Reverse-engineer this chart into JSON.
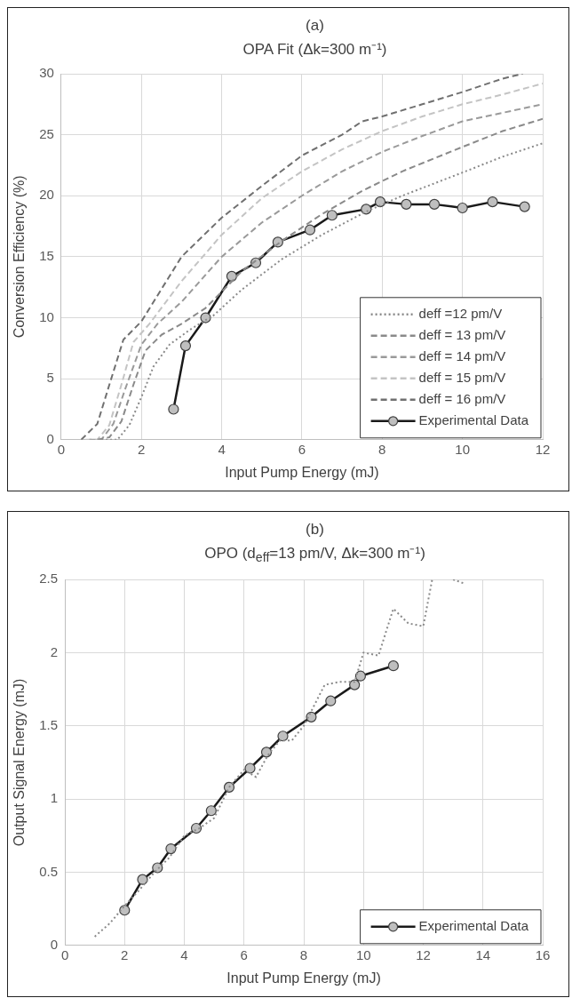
{
  "chart_data": [
    {
      "type": "line",
      "title": "(a)",
      "subtitle": "OPA Fit (Δk=300 m⁻¹)",
      "xlabel": "Input Pump Energy (mJ)",
      "ylabel": "Conversion Efficiency (%)",
      "xlim": [
        0,
        12
      ],
      "xticks": [
        0,
        2,
        4,
        6,
        8,
        10,
        12
      ],
      "ylim": [
        0,
        30
      ],
      "yticks": [
        0,
        5,
        10,
        15,
        20,
        25,
        30
      ],
      "grid": true,
      "legend": "bottom right",
      "series": [
        {
          "name": "deff =12 pm/V",
          "color": "#8a8a8a",
          "line_style": "dotted",
          "marker": "none",
          "x": [
            1.0,
            1.4,
            1.7,
            2.0,
            2.3,
            2.7,
            3.2,
            3.8,
            4.5,
            5.5,
            6.5,
            7.6,
            8.5,
            10,
            11,
            12
          ],
          "values": [
            0,
            0,
            1.2,
            3.5,
            6,
            7.8,
            9,
            10.2,
            12.3,
            14.8,
            16.8,
            18.7,
            20,
            21.9,
            23.2,
            24.3
          ]
        },
        {
          "name": "deff = 13 pm/V",
          "color": "#8a8a8a",
          "line_style": "dashed",
          "marker": "none",
          "x": [
            0.9,
            1.2,
            1.5,
            1.8,
            2.1,
            2.5,
            3,
            3.6,
            4.5,
            5.5,
            6.5,
            7.5,
            8.5,
            10,
            11,
            12
          ],
          "values": [
            0,
            0.2,
            1.5,
            4.5,
            7.3,
            8.6,
            9.5,
            10.8,
            13.8,
            16.3,
            18.5,
            20.4,
            22,
            24,
            25.3,
            26.3
          ]
        },
        {
          "name": "deff = 14 pm/V",
          "color": "#9a9a9a",
          "line_style": "dashed",
          "marker": "none",
          "x": [
            0.7,
            1.0,
            1.3,
            1.6,
            2.0,
            2.4,
            3.0,
            4.0,
            5.0,
            6,
            7,
            8,
            9,
            10,
            11,
            12
          ],
          "values": [
            0,
            0,
            1.3,
            4.2,
            7.8,
            9.5,
            11.3,
            15,
            17.8,
            20,
            22,
            23.6,
            24.9,
            26.1,
            26.8,
            27.5
          ]
        },
        {
          "name": "deff = 15 pm/V",
          "color": "#c4c4c4",
          "line_style": "dashed",
          "marker": "none",
          "x": [
            0.6,
            0.9,
            1.2,
            1.5,
            1.8,
            2.2,
            3,
            4,
            5,
            6,
            7,
            8,
            9,
            10,
            11,
            12
          ],
          "values": [
            0,
            0,
            1.2,
            4.5,
            8,
            9.5,
            13,
            16.8,
            19.8,
            22,
            23.8,
            25.3,
            26.5,
            27.5,
            28.3,
            29.2
          ]
        },
        {
          "name": "deff = 16 pm/V",
          "color": "#707070",
          "line_style": "dashed",
          "marker": "none",
          "x": [
            0.5,
            0.9,
            1.2,
            1.55,
            2,
            3,
            4,
            5,
            6,
            7,
            7.5,
            8,
            9,
            10,
            11,
            11.5
          ],
          "values": [
            0,
            1.3,
            4.5,
            8.2,
            9.7,
            15,
            18.2,
            20.8,
            23.3,
            25,
            26.1,
            26.5,
            27.5,
            28.5,
            29.6,
            30
          ]
        },
        {
          "name": "Experimental Data",
          "color": "#1a1a1a",
          "line_style": "solid",
          "marker": "circle",
          "x": [
            2.8,
            3.1,
            3.6,
            4.25,
            4.85,
            5.4,
            6.2,
            6.75,
            7.6,
            7.95,
            8.6,
            9.3,
            10,
            10.75,
            11.55
          ],
          "values": [
            2.5,
            7.7,
            10.0,
            13.4,
            14.5,
            16.2,
            17.2,
            18.4,
            18.9,
            19.5,
            19.3,
            19.3,
            19.0,
            19.5,
            19.1
          ]
        }
      ]
    },
    {
      "type": "line",
      "title": "(b)",
      "subtitle": "OPO (d$_{eff}$=13 pm/V, Δk=300 m⁻¹)",
      "xlabel": "Input Pump Energy (mJ)",
      "ylabel": "Output Signal Energy (mJ)",
      "xlim": [
        0,
        16
      ],
      "xticks": [
        0,
        2,
        4,
        6,
        8,
        10,
        12,
        14,
        16
      ],
      "ylim": [
        0,
        2.5
      ],
      "yticks": [
        0,
        0.5,
        1,
        1.5,
        2,
        2.5
      ],
      "grid": true,
      "legend": "bottom right",
      "series": [
        {
          "color": "#8a8a8a",
          "line_style": "dotted",
          "marker": "none",
          "x": [
            1,
            1.5,
            2,
            2.5,
            3,
            3.5,
            4,
            4.5,
            5,
            5.5,
            6,
            6.4,
            6.8,
            7.2,
            7.6,
            8,
            8.3,
            8.7,
            9.2,
            9.7,
            10,
            10.5,
            11,
            11.5,
            12,
            12.3,
            12.65,
            13,
            13.4
          ],
          "values": [
            0.06,
            0.15,
            0.27,
            0.38,
            0.5,
            0.6,
            0.75,
            0.8,
            0.87,
            1.08,
            1.2,
            1.15,
            1.3,
            1.4,
            1.4,
            1.5,
            1.62,
            1.78,
            1.8,
            1.8,
            2.0,
            1.98,
            2.3,
            2.2,
            2.18,
            2.5,
            null,
            2.5,
            2.47
          ]
        },
        {
          "name": "Experimental Data",
          "color": "#1a1a1a",
          "line_style": "solid",
          "marker": "circle",
          "x": [
            2,
            2.6,
            3.1,
            3.55,
            4.4,
            4.9,
            5.5,
            6.2,
            6.75,
            7.3,
            8.25,
            8.9,
            9.7,
            9.9,
            11
          ],
          "values": [
            0.24,
            0.45,
            0.53,
            0.66,
            0.8,
            0.92,
            1.08,
            1.21,
            1.32,
            1.43,
            1.56,
            1.67,
            1.78,
            1.84,
            1.91
          ]
        }
      ]
    }
  ]
}
